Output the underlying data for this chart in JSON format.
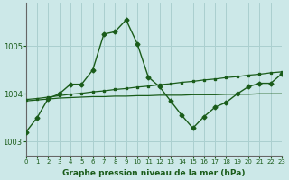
{
  "title": "Graphe pression niveau de la mer (hPa)",
  "background_color": "#cce8e8",
  "grid_color": "#aacfcf",
  "line_color": "#1a5c1a",
  "xlim": [
    0,
    23
  ],
  "ylim": [
    1002.7,
    1005.9
  ],
  "yticks": [
    1003,
    1004,
    1005
  ],
  "xticks": [
    0,
    1,
    2,
    3,
    4,
    5,
    6,
    7,
    8,
    9,
    10,
    11,
    12,
    13,
    14,
    15,
    16,
    17,
    18,
    19,
    20,
    21,
    22,
    23
  ],
  "series1_x": [
    0,
    1,
    2,
    3,
    4,
    5,
    6,
    7,
    8,
    9,
    10,
    11,
    12,
    13,
    14,
    15,
    16,
    17,
    18,
    19,
    20,
    21,
    22,
    23
  ],
  "series1_y": [
    1003.2,
    1003.5,
    1003.9,
    1004.0,
    1004.2,
    1004.2,
    1004.5,
    1005.25,
    1005.3,
    1005.55,
    1005.05,
    1004.35,
    1004.15,
    1003.85,
    1003.55,
    1003.28,
    1003.52,
    1003.72,
    1003.82,
    1004.0,
    1004.15,
    1004.22,
    1004.22,
    1004.42
  ],
  "series2_x": [
    0,
    1,
    2,
    3,
    4,
    5,
    6,
    7,
    8,
    9,
    10,
    11,
    12,
    13,
    14,
    15,
    16,
    17,
    18,
    19,
    20,
    21,
    22,
    23
  ],
  "series2_y": [
    1003.88,
    1003.9,
    1003.93,
    1003.96,
    1003.99,
    1004.01,
    1004.04,
    1004.06,
    1004.09,
    1004.11,
    1004.14,
    1004.16,
    1004.19,
    1004.21,
    1004.24,
    1004.26,
    1004.29,
    1004.31,
    1004.34,
    1004.36,
    1004.39,
    1004.41,
    1004.44,
    1004.46
  ],
  "series3_x": [
    0,
    1,
    2,
    3,
    4,
    5,
    6,
    7,
    8,
    9,
    10,
    11,
    12,
    13,
    14,
    15,
    16,
    17,
    18,
    19,
    20,
    21,
    22,
    23
  ],
  "series3_y": [
    1003.85,
    1003.87,
    1003.89,
    1003.91,
    1003.92,
    1003.93,
    1003.94,
    1003.94,
    1003.95,
    1003.95,
    1003.96,
    1003.96,
    1003.97,
    1003.97,
    1003.97,
    1003.98,
    1003.98,
    1003.98,
    1003.99,
    1003.99,
    1003.99,
    1004.0,
    1004.0,
    1004.0
  ]
}
